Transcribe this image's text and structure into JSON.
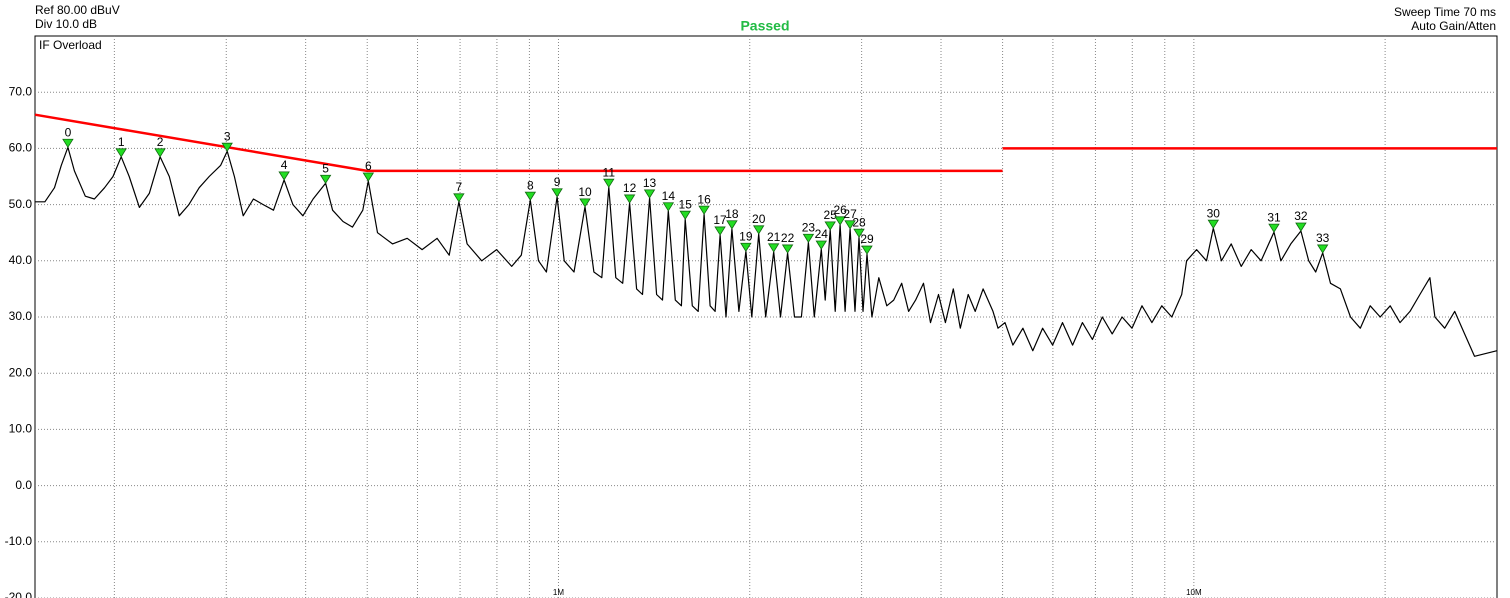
{
  "chart_data": {
    "type": "line",
    "title": "Passed",
    "annotations": [
      "Ref 80.00 dBuV",
      "Div 10.0 dB",
      "IF Overload",
      "Sweep Time 70 ms",
      "Auto Gain/Atten"
    ],
    "xlog": true,
    "grid": true,
    "xlim": [
      150000,
      30000000
    ],
    "xticks": [
      {
        "value": 1000000,
        "label": "1M"
      },
      {
        "value": 10000000,
        "label": "10M"
      }
    ],
    "xminor_ticks": [
      200000,
      300000,
      400000,
      500000,
      600000,
      700000,
      800000,
      900000,
      2000000,
      3000000,
      4000000,
      5000000,
      6000000,
      7000000,
      8000000,
      9000000,
      20000000
    ],
    "ylim": [
      -20,
      80
    ],
    "yticks": [
      {
        "value": -20,
        "label": "-20.0"
      },
      {
        "value": -10,
        "label": "-10.0"
      },
      {
        "value": 0,
        "label": "0.0"
      },
      {
        "value": 10,
        "label": "10.0"
      },
      {
        "value": 20,
        "label": "20.0"
      },
      {
        "value": 30,
        "label": "30.0"
      },
      {
        "value": 40,
        "label": "40.0"
      },
      {
        "value": 50,
        "label": "50.0"
      },
      {
        "value": 60,
        "label": "60.0"
      },
      {
        "value": 70,
        "label": "70.0"
      }
    ],
    "series": [
      {
        "color": "#000000",
        "x": [
          150000,
          155500,
          161000,
          165000,
          169000,
          173000,
          180000,
          186000,
          193000,
          199000,
          205000,
          211000,
          219000,
          227000,
          236000,
          244000,
          253000,
          262000,
          272000,
          282000,
          294000,
          301000,
          309000,
          319000,
          331000,
          343000,
          356000,
          370000,
          382000,
          396000,
          411000,
          430000,
          441000,
          458000,
          474000,
          492000,
          502000,
          519000,
          548000,
          578000,
          610000,
          644000,
          673000,
          697000,
          718000,
          757000,
          799000,
          844000,
          874000,
          903000,
          930000,
          957000,
          995000,
          1021000,
          1058000,
          1101000,
          1137000,
          1170000,
          1200000,
          1231000,
          1262000,
          1294000,
          1327000,
          1356000,
          1391000,
          1427000,
          1458000,
          1489000,
          1527000,
          1561000,
          1583000,
          1624000,
          1659000,
          1695000,
          1732000,
          1764000,
          1796000,
          1835000,
          1875000,
          1923000,
          1972000,
          2015000,
          2066000,
          2119000,
          2181000,
          2236000,
          2294000,
          2352000,
          2412000,
          2474000,
          2527000,
          2592000,
          2629000,
          2677000,
          2726000,
          2775000,
          2826000,
          2877000,
          2929000,
          2972000,
          3015000,
          3059000,
          3114000,
          3193000,
          3286000,
          3370000,
          3469000,
          3557000,
          3648000,
          3754000,
          3850000,
          3963000,
          4064000,
          4182000,
          4289000,
          4414000,
          4527000,
          4659000,
          4830000,
          4918000,
          5043000,
          5190000,
          5381000,
          5578000,
          5781000,
          5993000,
          6213000,
          6443000,
          6677000,
          6923000,
          7176000,
          7438000,
          7709000,
          7993000,
          8286000,
          8589000,
          8903000,
          9231000,
          9568000,
          9741000,
          10100000,
          10470000,
          10730000,
          11050000,
          11450000,
          11870000,
          12310000,
          12760000,
          13370000,
          13710000,
          14210000,
          14740000,
          15160000,
          15550000,
          15950000,
          16410000,
          17010000,
          17640000,
          18280000,
          18950000,
          19650000,
          20370000,
          21110000,
          21890000,
          22690000,
          23520000,
          23950000,
          24820000,
          25740000,
          26680000,
          27650000,
          30000000
        ],
        "values": [
          50.5,
          50.5,
          53,
          57,
          60.2,
          56,
          51.5,
          51,
          53,
          55,
          58.5,
          55,
          49.5,
          52,
          58.5,
          55,
          48,
          50,
          53,
          55,
          57,
          59.5,
          55,
          48,
          51,
          50,
          49,
          54.4,
          50,
          48,
          51,
          53.8,
          49,
          47,
          46,
          49,
          54.2,
          45,
          43,
          44,
          42,
          44,
          41,
          50.5,
          43,
          40,
          42,
          39,
          41,
          50.8,
          40,
          38,
          51.4,
          40,
          38,
          49.6,
          38,
          37,
          53.1,
          37,
          36,
          50.3,
          35,
          34,
          51.2,
          34,
          33,
          48.9,
          33,
          32,
          47.4,
          32,
          31,
          48.3,
          32,
          31,
          44.6,
          30,
          45.7,
          31,
          41.7,
          30,
          44.8,
          30,
          41.6,
          30,
          41.4,
          30,
          30,
          43.3,
          30,
          42.1,
          33,
          45.5,
          31,
          46.4,
          31,
          45.7,
          31,
          44.2,
          31,
          41.2,
          30,
          37,
          32,
          33,
          36,
          31,
          33,
          36,
          29,
          34,
          29,
          35,
          28,
          34,
          31,
          35,
          31,
          28,
          29,
          25,
          28,
          24,
          28,
          25,
          29,
          25,
          29,
          26,
          30,
          27,
          30,
          28,
          32,
          29,
          32,
          30,
          34,
          40,
          42,
          40,
          45.8,
          40,
          43,
          39,
          42,
          40,
          45.1,
          40,
          43,
          45.3,
          40,
          38,
          41.4,
          36,
          35,
          30,
          28,
          32,
          30,
          32,
          29,
          31,
          34,
          37,
          30,
          28,
          31,
          27,
          23,
          24
        ]
      },
      {
        "color": "#ff0000",
        "x": [
          150000,
          500000,
          5000000,
          null,
          5000000,
          30000000
        ],
        "values": [
          66,
          56,
          56,
          null,
          60,
          60
        ]
      }
    ],
    "markers": {
      "color": "#22dd22",
      "labels": [
        "0",
        "1",
        "2",
        "3",
        "4",
        "5",
        "6",
        "7",
        "8",
        "9",
        "10",
        "11",
        "12",
        "13",
        "14",
        "15",
        "16",
        "17",
        "18",
        "19",
        "20",
        "21",
        "22",
        "23",
        "24",
        "25",
        "26",
        "27",
        "28",
        "29",
        "30",
        "31",
        "32",
        "33"
      ],
      "x": [
        169000,
        205000,
        236000,
        301000,
        370000,
        430000,
        502000,
        697000,
        903000,
        995000,
        1101000,
        1200000,
        1294000,
        1391000,
        1489000,
        1583000,
        1695000,
        1796000,
        1875000,
        1972000,
        2066000,
        2181000,
        2294000,
        2474000,
        2592000,
        2677000,
        2775000,
        2877000,
        2972000,
        3059000,
        10730000,
        13370000,
        14740000,
        15950000
      ],
      "values": [
        60.2,
        58.5,
        58.5,
        59.5,
        54.4,
        53.8,
        54.2,
        50.5,
        50.8,
        51.4,
        49.6,
        53.1,
        50.3,
        51.2,
        48.9,
        47.4,
        48.3,
        44.6,
        45.7,
        41.7,
        44.8,
        41.6,
        41.4,
        43.3,
        42.1,
        45.5,
        46.4,
        45.7,
        44.2,
        41.2,
        45.8,
        45.1,
        45.3,
        41.4
      ]
    }
  }
}
